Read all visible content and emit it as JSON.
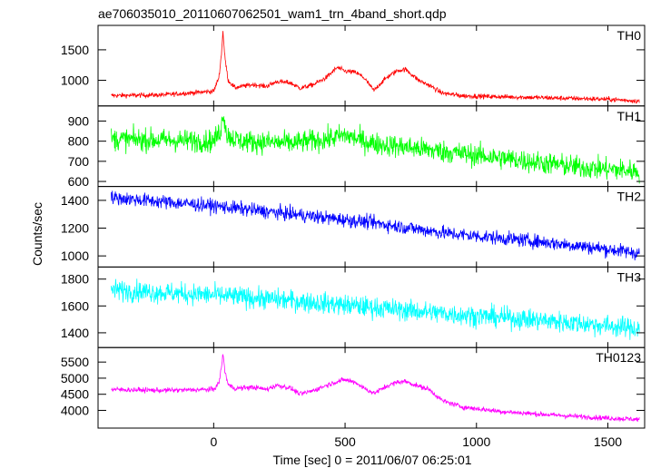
{
  "chart_data": {
    "type": "line",
    "title": "ae706035010_20110607062501_wam1_trn_4band_short.qdp",
    "xlabel": "Time [sec] 0 = 2011/06/07 06:25:01",
    "ylabel": "Counts/sec",
    "xlim": [
      -440,
      1640
    ],
    "x_ticks": [
      0,
      500,
      1000,
      1500
    ],
    "x_tick_labels": [
      "0",
      "500",
      "1000",
      "1500"
    ],
    "grid": false,
    "panels": [
      {
        "name": "TH0",
        "color": "#ff0000",
        "ylim": [
          580,
          1900
        ],
        "y_ticks": [
          1000,
          1500
        ],
        "y_tick_labels": [
          "1000",
          "1500"
        ],
        "noise": 35,
        "envelope": [
          [
            -390,
            750
          ],
          [
            -200,
            760
          ],
          [
            0,
            820
          ],
          [
            20,
            1050
          ],
          [
            30,
            1450
          ],
          [
            35,
            1820
          ],
          [
            42,
            1400
          ],
          [
            55,
            1000
          ],
          [
            80,
            880
          ],
          [
            150,
            930
          ],
          [
            200,
            900
          ],
          [
            240,
            980
          ],
          [
            290,
            960
          ],
          [
            330,
            870
          ],
          [
            380,
            930
          ],
          [
            430,
            1050
          ],
          [
            470,
            1210
          ],
          [
            500,
            1150
          ],
          [
            540,
            1130
          ],
          [
            570,
            1050
          ],
          [
            610,
            830
          ],
          [
            630,
            930
          ],
          [
            660,
            1050
          ],
          [
            700,
            1160
          ],
          [
            730,
            1180
          ],
          [
            780,
            1000
          ],
          [
            820,
            920
          ],
          [
            870,
            790
          ],
          [
            950,
            745
          ],
          [
            1100,
            730
          ],
          [
            1300,
            710
          ],
          [
            1500,
            690
          ],
          [
            1620,
            660
          ]
        ]
      },
      {
        "name": "TH1",
        "color": "#00ff00",
        "ylim": [
          575,
          975
        ],
        "y_ticks": [
          600,
          700,
          800,
          900
        ],
        "y_tick_labels": [
          "600",
          "700",
          "800",
          "900"
        ],
        "noise": 50,
        "envelope": [
          [
            -390,
            810
          ],
          [
            0,
            800
          ],
          [
            25,
            850
          ],
          [
            38,
            940
          ],
          [
            50,
            830
          ],
          [
            100,
            800
          ],
          [
            300,
            790
          ],
          [
            430,
            810
          ],
          [
            500,
            830
          ],
          [
            600,
            790
          ],
          [
            800,
            760
          ],
          [
            1000,
            730
          ],
          [
            1200,
            700
          ],
          [
            1400,
            670
          ],
          [
            1620,
            650
          ]
        ]
      },
      {
        "name": "TH2",
        "color": "#0000ff",
        "ylim": [
          920,
          1500
        ],
        "y_ticks": [
          1000,
          1200,
          1400
        ],
        "y_tick_labels": [
          "1000",
          "1200",
          "1400"
        ],
        "noise": 45,
        "envelope": [
          [
            -390,
            1420
          ],
          [
            0,
            1360
          ],
          [
            300,
            1300
          ],
          [
            600,
            1240
          ],
          [
            900,
            1160
          ],
          [
            1200,
            1110
          ],
          [
            1400,
            1070
          ],
          [
            1620,
            1020
          ]
        ]
      },
      {
        "name": "TH3",
        "color": "#00ffff",
        "ylim": [
          1290,
          1890
        ],
        "y_ticks": [
          1400,
          1600,
          1800
        ],
        "y_tick_labels": [
          "1400",
          "1600",
          "1800"
        ],
        "noise": 70,
        "envelope": [
          [
            -390,
            1720
          ],
          [
            0,
            1680
          ],
          [
            300,
            1640
          ],
          [
            600,
            1590
          ],
          [
            900,
            1540
          ],
          [
            1200,
            1500
          ],
          [
            1400,
            1470
          ],
          [
            1620,
            1430
          ]
        ]
      },
      {
        "name": "TH0123",
        "color": "#ff00ff",
        "ylim": [
          3450,
          5950
        ],
        "y_ticks": [
          4000,
          4500,
          5000,
          5500
        ],
        "y_tick_labels": [
          "4000",
          "4500",
          "5000",
          "5500"
        ],
        "noise": 70,
        "envelope": [
          [
            -390,
            4650
          ],
          [
            -200,
            4620
          ],
          [
            0,
            4650
          ],
          [
            20,
            4850
          ],
          [
            30,
            5350
          ],
          [
            35,
            5780
          ],
          [
            42,
            5250
          ],
          [
            55,
            4800
          ],
          [
            80,
            4680
          ],
          [
            150,
            4720
          ],
          [
            200,
            4650
          ],
          [
            240,
            4780
          ],
          [
            290,
            4700
          ],
          [
            330,
            4500
          ],
          [
            380,
            4620
          ],
          [
            430,
            4780
          ],
          [
            470,
            4900
          ],
          [
            500,
            4950
          ],
          [
            540,
            4870
          ],
          [
            570,
            4700
          ],
          [
            610,
            4530
          ],
          [
            630,
            4620
          ],
          [
            660,
            4760
          ],
          [
            700,
            4880
          ],
          [
            730,
            4900
          ],
          [
            780,
            4750
          ],
          [
            820,
            4650
          ],
          [
            870,
            4300
          ],
          [
            950,
            4100
          ],
          [
            1100,
            3960
          ],
          [
            1300,
            3850
          ],
          [
            1500,
            3760
          ],
          [
            1620,
            3720
          ]
        ]
      }
    ]
  }
}
